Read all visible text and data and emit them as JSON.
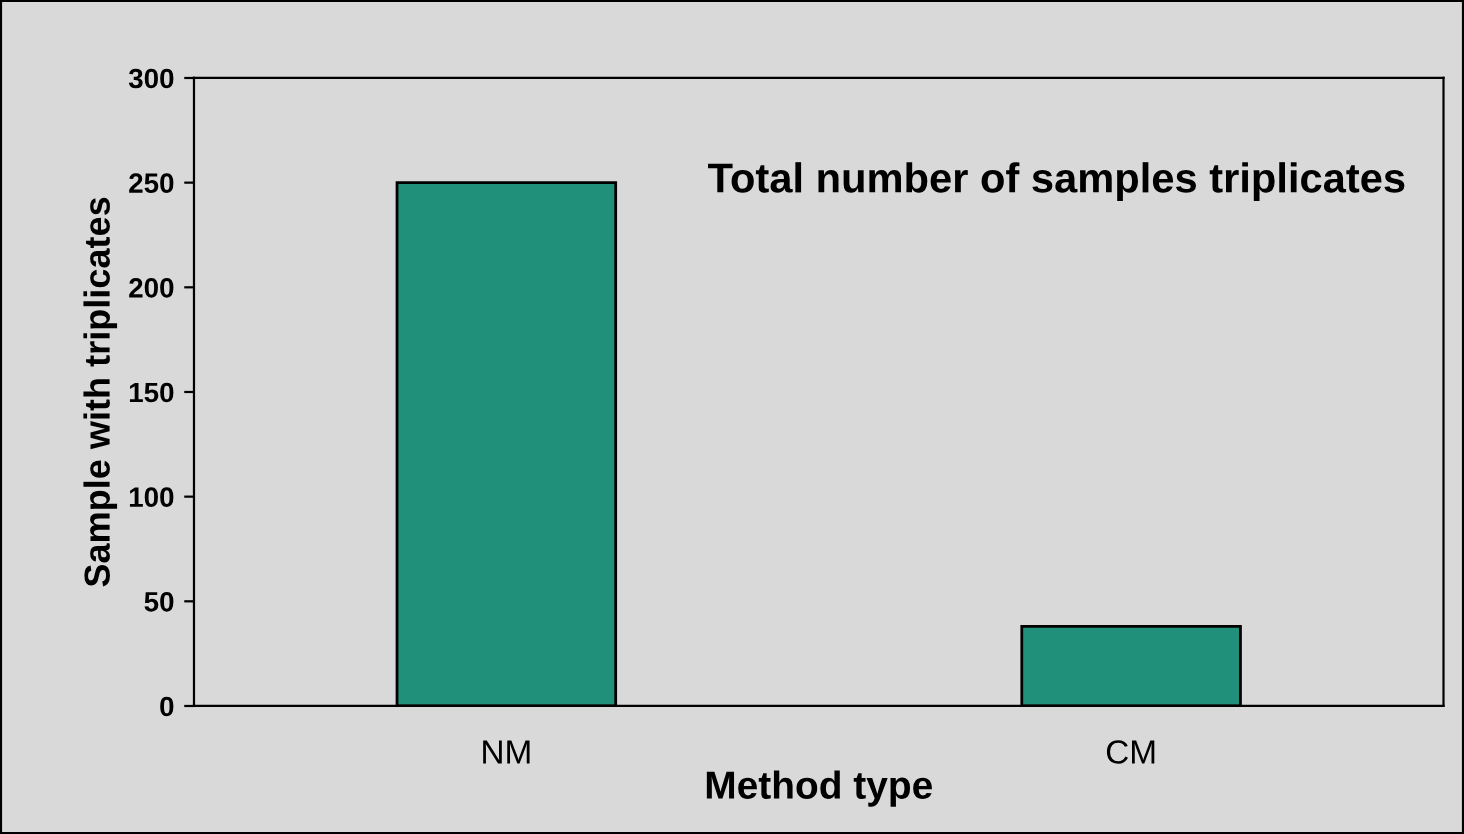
{
  "chart_data": {
    "type": "bar",
    "title": "Total number of samples triplicates",
    "xlabel": "Method type",
    "ylabel": "Sample with triplicates",
    "categories": [
      "NM",
      "CM"
    ],
    "values": [
      250,
      38
    ],
    "color": "#21907a",
    "ylim": [
      0,
      300
    ],
    "yticks": [
      0,
      50,
      100,
      150,
      200,
      250,
      300
    ],
    "grid": false,
    "legend": false
  }
}
